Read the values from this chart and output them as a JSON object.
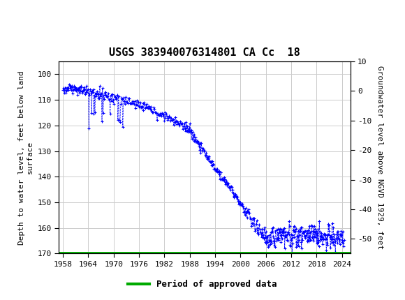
{
  "title": "USGS 383940076314801 CA Cc  18",
  "ylabel_left": "Depth to water level, feet below land\nsurface",
  "ylabel_right": "Groundwater level above NGVD 1929, feet",
  "ylim_left": [
    170,
    95
  ],
  "ylim_right": [
    -55,
    10
  ],
  "xlim": [
    1957,
    2026
  ],
  "xticks": [
    1958,
    1964,
    1970,
    1976,
    1982,
    1988,
    1994,
    2000,
    2006,
    2012,
    2018,
    2024
  ],
  "yticks_left": [
    100,
    110,
    120,
    130,
    140,
    150,
    160,
    170
  ],
  "yticks_right": [
    10,
    0,
    -10,
    -20,
    -30,
    -40,
    -50
  ],
  "data_color": "#0000FF",
  "legend_line_color": "#00aa00",
  "legend_label": "Period of approved data",
  "header_bg_color": "#1a6b3c",
  "plot_bg_color": "#ffffff",
  "grid_color": "#cccccc",
  "title_fontsize": 11,
  "label_fontsize": 8,
  "tick_fontsize": 8,
  "marker": "+",
  "marker_size": 3,
  "line_style": "--",
  "line_width": 0.5
}
